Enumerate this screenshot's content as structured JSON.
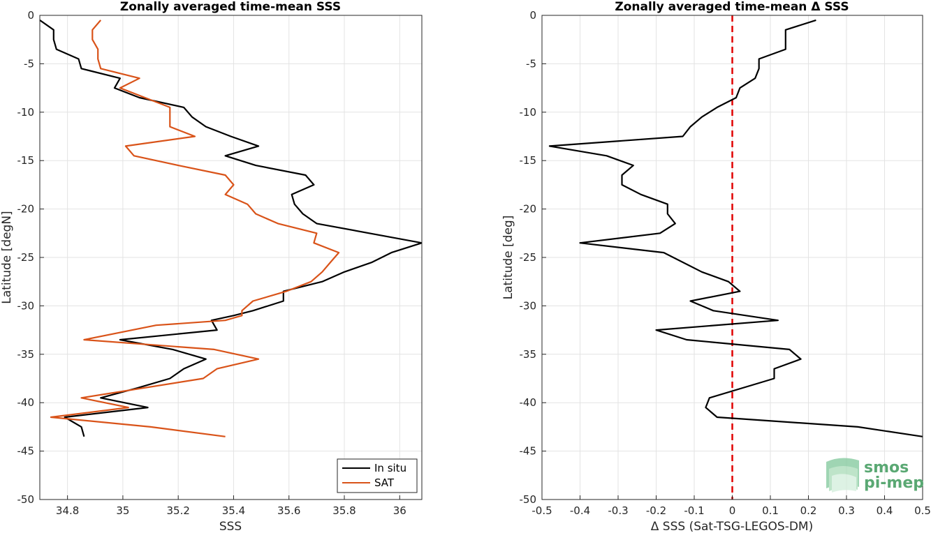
{
  "chart_data": [
    {
      "type": "line",
      "title": "Zonally averaged time-mean SSS",
      "xlabel": "SSS",
      "ylabel": "Latitude [degN]",
      "xlim": [
        34.7,
        36.08
      ],
      "ylim": [
        -50,
        0
      ],
      "xticks": [
        34.8,
        35,
        35.2,
        35.4,
        35.6,
        35.8,
        36
      ],
      "xtick_labels": [
        "34.8",
        "35",
        "35.2",
        "35.4",
        "35.6",
        "35.8",
        "36"
      ],
      "yticks": [
        0,
        -5,
        -10,
        -15,
        -20,
        -25,
        -30,
        -35,
        -40,
        -45,
        -50
      ],
      "ytick_labels": [
        "0",
        "-5",
        "-10",
        "-15",
        "-20",
        "-25",
        "-30",
        "-35",
        "-40",
        "-45",
        "-50"
      ],
      "grid": true,
      "legend": "bottom-right",
      "series": [
        {
          "name": "In situ",
          "color": "#000000",
          "points": [
            [
              34.7,
              -0.5
            ],
            [
              34.75,
              -1.5
            ],
            [
              34.75,
              -2.5
            ],
            [
              34.76,
              -3.5
            ],
            [
              34.84,
              -4.5
            ],
            [
              34.85,
              -5.5
            ],
            [
              34.99,
              -6.5
            ],
            [
              34.97,
              -7.5
            ],
            [
              35.06,
              -8.5
            ],
            [
              35.22,
              -9.5
            ],
            [
              35.25,
              -10.5
            ],
            [
              35.3,
              -11.5
            ],
            [
              35.39,
              -12.5
            ],
            [
              35.49,
              -13.5
            ],
            [
              35.37,
              -14.5
            ],
            [
              35.48,
              -15.5
            ],
            [
              35.66,
              -16.5
            ],
            [
              35.69,
              -17.5
            ],
            [
              35.61,
              -18.5
            ],
            [
              35.62,
              -19.5
            ],
            [
              35.65,
              -20.5
            ],
            [
              35.7,
              -21.5
            ],
            [
              36.08,
              -23.5
            ],
            [
              35.97,
              -24.5
            ],
            [
              35.9,
              -25.5
            ],
            [
              35.8,
              -26.5
            ],
            [
              35.72,
              -27.5
            ],
            [
              35.58,
              -28.5
            ],
            [
              35.58,
              -29.5
            ],
            [
              35.47,
              -30.5
            ],
            [
              35.4,
              -31.0
            ],
            [
              35.32,
              -31.5
            ],
            [
              35.34,
              -32.5
            ],
            [
              34.99,
              -33.5
            ],
            [
              35.18,
              -34.5
            ],
            [
              35.3,
              -35.5
            ],
            [
              35.22,
              -36.5
            ],
            [
              35.17,
              -37.5
            ],
            [
              35.05,
              -38.5
            ],
            [
              34.92,
              -39.5
            ],
            [
              35.09,
              -40.5
            ],
            [
              34.79,
              -41.5
            ],
            [
              34.85,
              -42.5
            ],
            [
              34.86,
              -43.5
            ]
          ]
        },
        {
          "name": "SAT",
          "color": "#D95319",
          "points": [
            [
              34.92,
              -0.5
            ],
            [
              34.89,
              -1.5
            ],
            [
              34.89,
              -2.5
            ],
            [
              34.91,
              -3.5
            ],
            [
              34.91,
              -4.5
            ],
            [
              34.92,
              -5.5
            ],
            [
              35.06,
              -6.5
            ],
            [
              34.99,
              -7.5
            ],
            [
              35.08,
              -8.5
            ],
            [
              35.17,
              -9.5
            ],
            [
              35.17,
              -10.5
            ],
            [
              35.17,
              -11.5
            ],
            [
              35.26,
              -12.5
            ],
            [
              35.01,
              -13.5
            ],
            [
              35.04,
              -14.5
            ],
            [
              35.2,
              -15.5
            ],
            [
              35.37,
              -16.5
            ],
            [
              35.4,
              -17.5
            ],
            [
              35.37,
              -18.5
            ],
            [
              35.45,
              -19.5
            ],
            [
              35.48,
              -20.5
            ],
            [
              35.56,
              -21.5
            ],
            [
              35.7,
              -22.5
            ],
            [
              35.69,
              -23.5
            ],
            [
              35.78,
              -24.5
            ],
            [
              35.75,
              -25.5
            ],
            [
              35.72,
              -26.5
            ],
            [
              35.68,
              -27.5
            ],
            [
              35.59,
              -28.5
            ],
            [
              35.47,
              -29.5
            ],
            [
              35.43,
              -30.5
            ],
            [
              35.43,
              -31.0
            ],
            [
              35.37,
              -31.5
            ],
            [
              35.12,
              -32.0
            ],
            [
              34.86,
              -33.5
            ],
            [
              35.33,
              -34.5
            ],
            [
              35.49,
              -35.5
            ],
            [
              35.34,
              -36.5
            ],
            [
              35.29,
              -37.5
            ],
            [
              34.85,
              -39.5
            ],
            [
              35.02,
              -40.5
            ],
            [
              34.74,
              -41.5
            ],
            [
              35.1,
              -42.5
            ],
            [
              35.37,
              -43.5
            ]
          ]
        }
      ]
    },
    {
      "type": "line",
      "title": "Zonally averaged time-mean Δ SSS",
      "xlabel": "Δ SSS (Sat-TSG-LEGOS-DM)",
      "ylabel": "Latitude [deg]",
      "xlim": [
        -0.5,
        0.5
      ],
      "ylim": [
        -50,
        0
      ],
      "xticks": [
        -0.5,
        -0.4,
        -0.3,
        -0.2,
        -0.1,
        0,
        0.1,
        0.2,
        0.3,
        0.4,
        0.5
      ],
      "xtick_labels": [
        "-0.5",
        "-0.4",
        "-0.3",
        "-0.2",
        "-0.1",
        "0",
        "0.1",
        "0.2",
        "0.3",
        "0.4",
        "0.5"
      ],
      "yticks": [
        0,
        -5,
        -10,
        -15,
        -20,
        -25,
        -30,
        -35,
        -40,
        -45,
        -50
      ],
      "ytick_labels": [
        "0",
        "-5",
        "-10",
        "-15",
        "-20",
        "-25",
        "-30",
        "-35",
        "-40",
        "-45",
        "-50"
      ],
      "grid": true,
      "reference_line": {
        "x": 0,
        "color": "#e00000",
        "style": "dashed"
      },
      "series": [
        {
          "color": "#000000",
          "points": [
            [
              0.22,
              -0.5
            ],
            [
              0.14,
              -1.5
            ],
            [
              0.14,
              -3.5
            ],
            [
              0.07,
              -4.5
            ],
            [
              0.07,
              -5.5
            ],
            [
              0.06,
              -6.5
            ],
            [
              0.02,
              -7.5
            ],
            [
              0.01,
              -8.5
            ],
            [
              -0.04,
              -9.5
            ],
            [
              -0.08,
              -10.5
            ],
            [
              -0.11,
              -11.5
            ],
            [
              -0.13,
              -12.5
            ],
            [
              -0.48,
              -13.5
            ],
            [
              -0.33,
              -14.5
            ],
            [
              -0.26,
              -15.5
            ],
            [
              -0.29,
              -16.5
            ],
            [
              -0.29,
              -17.5
            ],
            [
              -0.24,
              -18.5
            ],
            [
              -0.17,
              -19.5
            ],
            [
              -0.17,
              -20.5
            ],
            [
              -0.15,
              -21.5
            ],
            [
              -0.19,
              -22.5
            ],
            [
              -0.4,
              -23.5
            ],
            [
              -0.18,
              -24.5
            ],
            [
              -0.08,
              -26.5
            ],
            [
              -0.01,
              -27.5
            ],
            [
              0.02,
              -28.5
            ],
            [
              -0.11,
              -29.5
            ],
            [
              -0.05,
              -30.5
            ],
            [
              0.12,
              -31.5
            ],
            [
              -0.2,
              -32.5
            ],
            [
              -0.12,
              -33.5
            ],
            [
              0.15,
              -34.5
            ],
            [
              0.18,
              -35.5
            ],
            [
              0.11,
              -36.5
            ],
            [
              0.11,
              -37.5
            ],
            [
              -0.06,
              -39.5
            ],
            [
              -0.07,
              -40.5
            ],
            [
              -0.04,
              -41.5
            ],
            [
              0.33,
              -42.5
            ],
            [
              0.5,
              -43.5
            ]
          ]
        }
      ]
    }
  ],
  "legend_labels": [
    "In situ",
    "SAT"
  ],
  "logo": {
    "line1": "smos",
    "line2": "pi-mep",
    "color": "#5aa873"
  }
}
